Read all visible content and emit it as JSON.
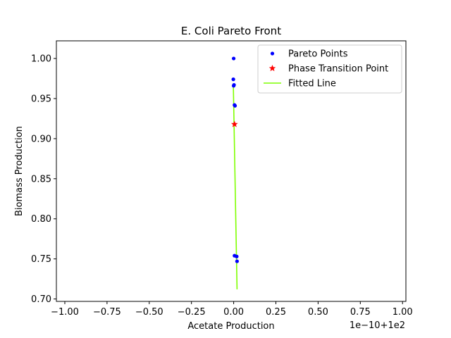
{
  "chart_data": {
    "type": "scatter",
    "title": "E. Coli Pareto Front",
    "xlabel": "Acetate Production",
    "ylabel": "Biomass Production",
    "x_offset_label": "1e−10+1e2",
    "xlim": [
      -1.05,
      1.02
    ],
    "ylim": [
      0.697,
      1.022
    ],
    "x_ticks": [
      -1.0,
      -0.75,
      -0.5,
      -0.25,
      0.0,
      0.25,
      0.5,
      0.75,
      1.0
    ],
    "x_tick_labels": [
      "−1.00",
      "−0.75",
      "−0.50",
      "−0.25",
      "0.00",
      "0.25",
      "0.50",
      "0.75",
      "1.00"
    ],
    "y_ticks": [
      0.7,
      0.75,
      0.8,
      0.85,
      0.9,
      0.95,
      1.0
    ],
    "y_tick_labels": [
      "0.70",
      "0.75",
      "0.80",
      "0.85",
      "0.90",
      "0.95",
      "1.00"
    ],
    "legend_position": "top-right",
    "series": [
      {
        "name": "Pareto Points",
        "kind": "scatter",
        "marker": "dot",
        "color": "#0000ff",
        "x": [
          0.0,
          -0.002,
          0.002,
          0.0,
          0.005,
          0.008,
          0.005,
          0.018,
          0.02
        ],
        "y": [
          1.0,
          0.974,
          0.967,
          0.966,
          0.942,
          0.941,
          0.754,
          0.753,
          0.747
        ]
      },
      {
        "name": "Phase Transition Point",
        "kind": "scatter",
        "marker": "star",
        "color": "#ff0000",
        "x": [
          0.005
        ],
        "y": [
          0.918
        ]
      },
      {
        "name": "Fitted Line",
        "kind": "line",
        "color": "#7fff00",
        "x": [
          -0.002,
          0.02
        ],
        "y": [
          0.967,
          0.712
        ]
      }
    ]
  }
}
